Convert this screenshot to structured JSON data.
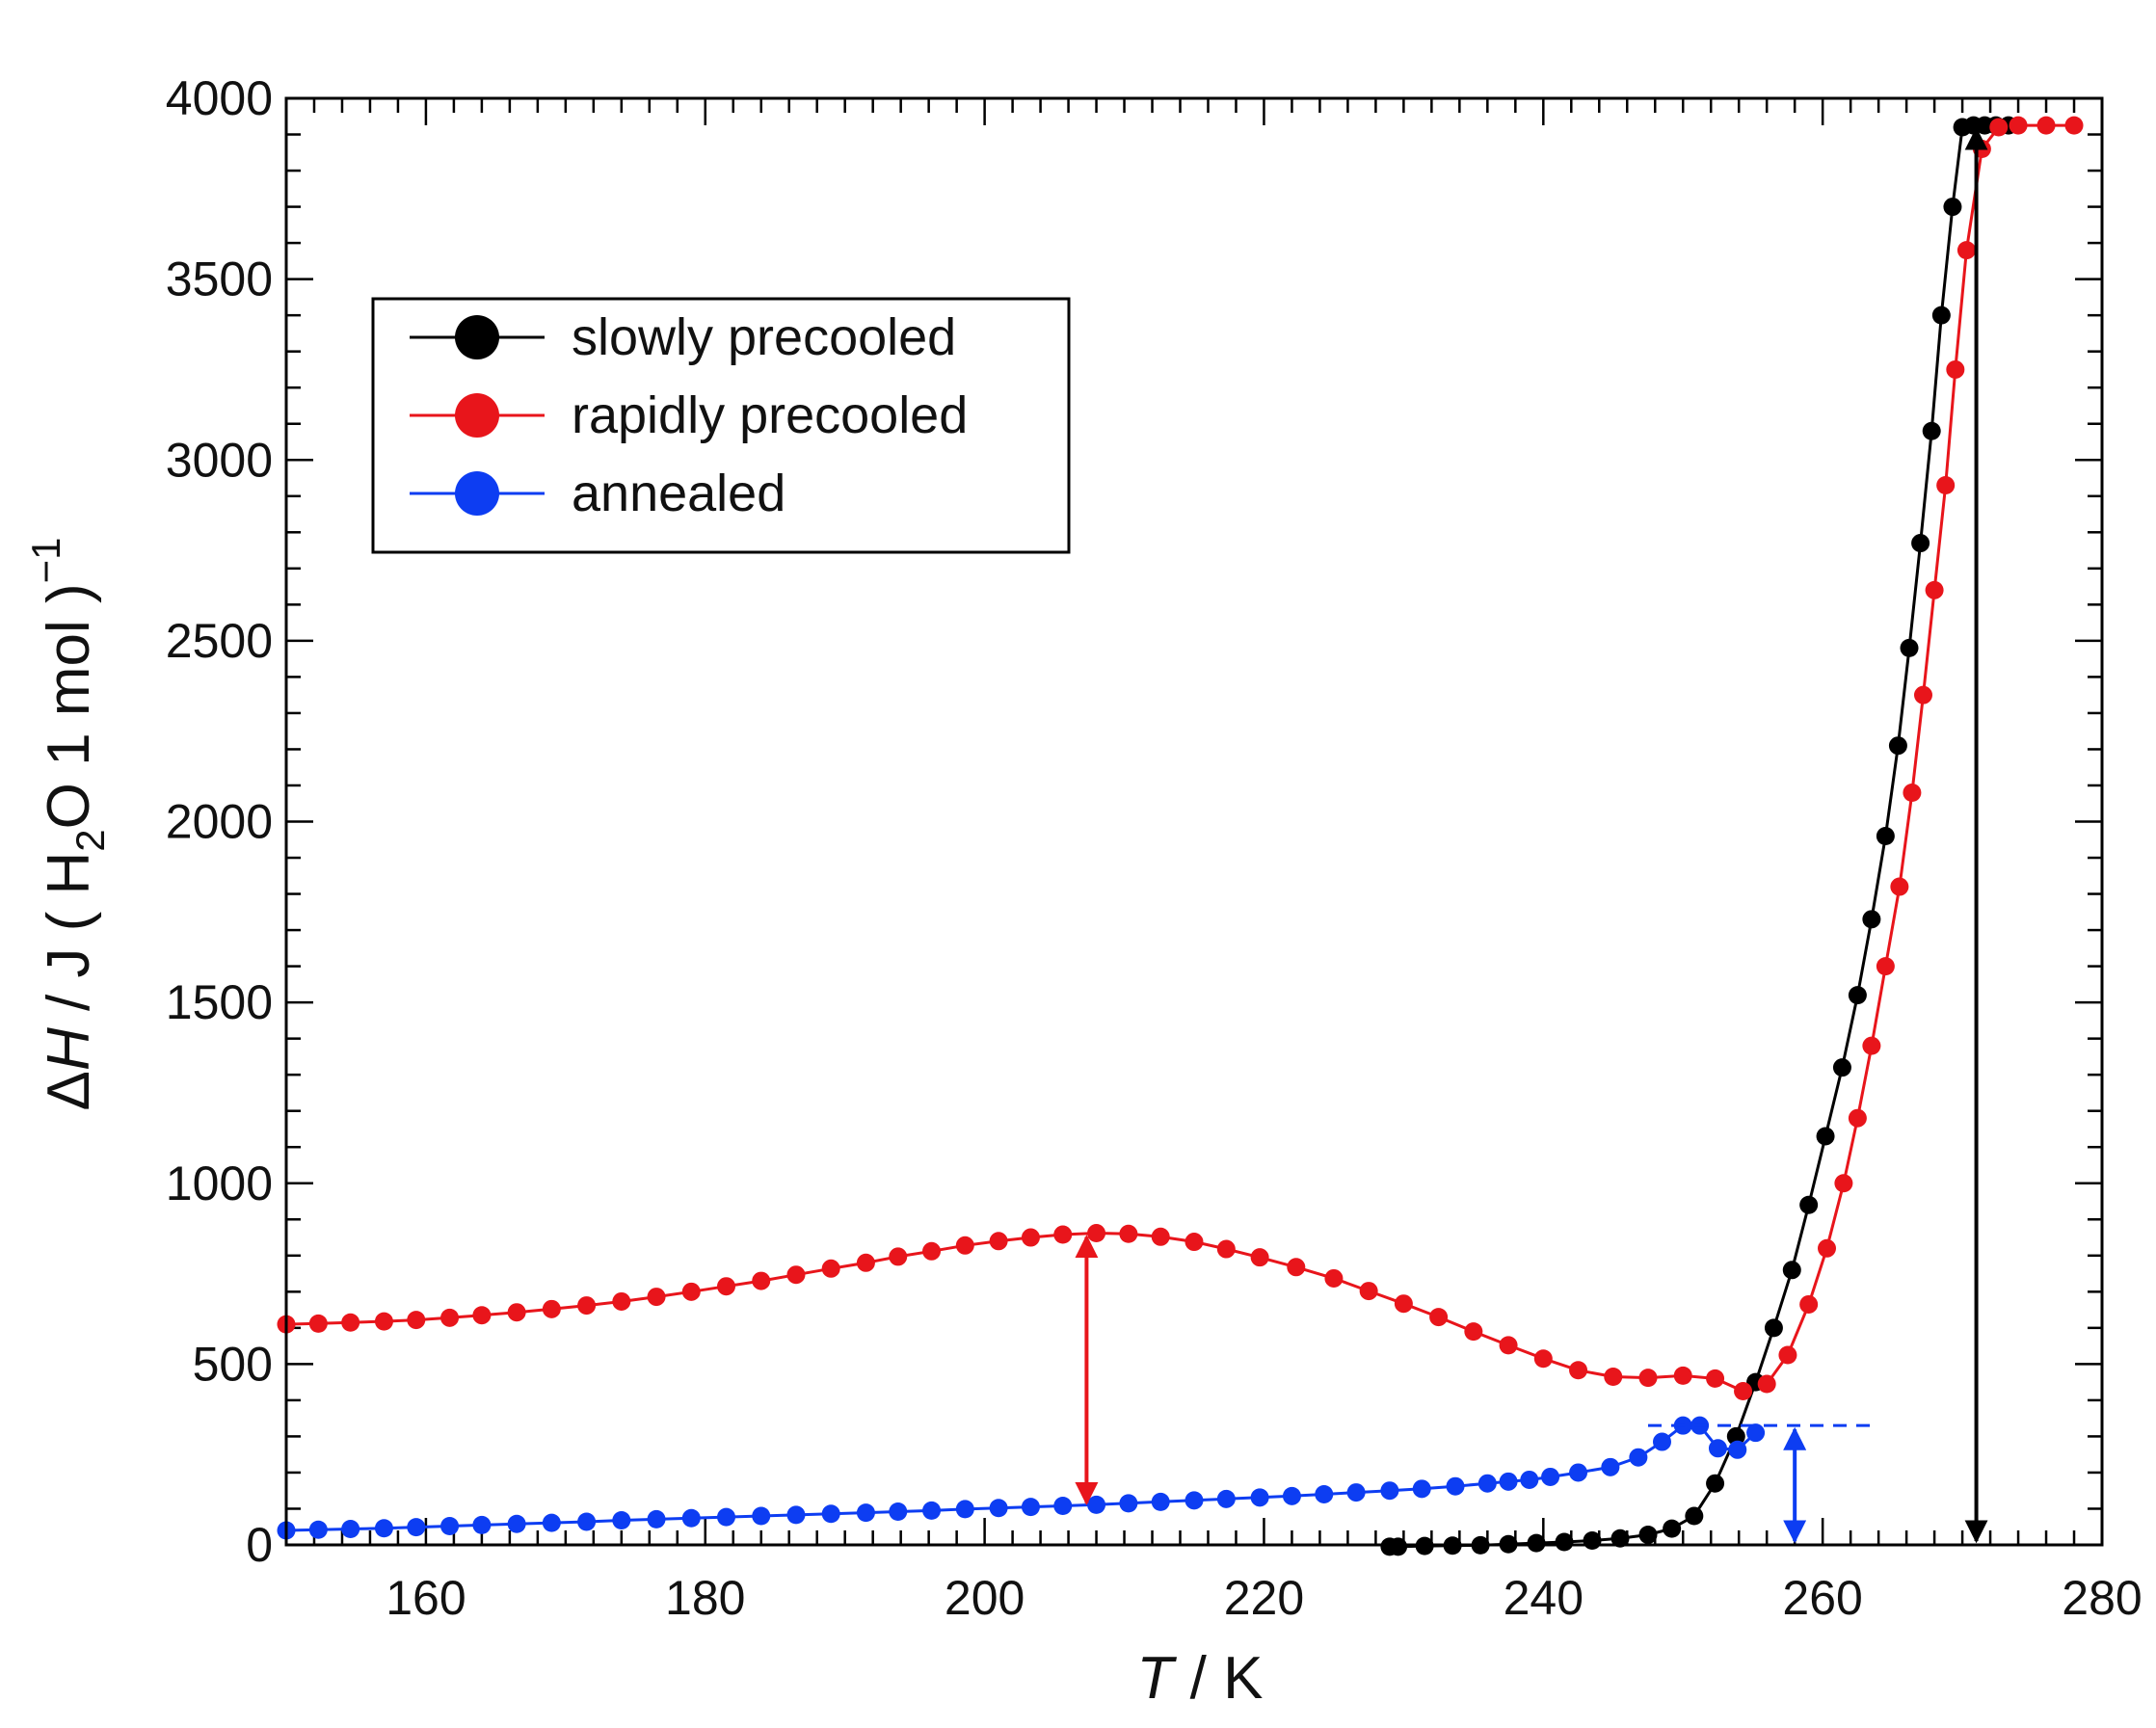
{
  "chart_data": {
    "type": "line",
    "title": "",
    "xlabel": {
      "var": "T",
      "unit": "K"
    },
    "ylabel": {
      "prefix": "Δ",
      "var": "H",
      "mid": " / J ( H",
      "sub": "2",
      "after": "O 1 mol )",
      "sup": "−1"
    },
    "xlim": [
      150,
      280
    ],
    "ylim": [
      0,
      4000
    ],
    "xticks": [
      160,
      180,
      200,
      220,
      240,
      260,
      280
    ],
    "yticks": [
      0,
      500,
      1000,
      1500,
      2000,
      2500,
      3000,
      3500,
      4000
    ],
    "grid": false,
    "legend_position": "top-left",
    "series": [
      {
        "name": "slowly precooled",
        "color": "#000000",
        "x": [
          229,
          229.6,
          231.5,
          233.5,
          235.5,
          237.5,
          239.5,
          241.5,
          243.5,
          245.5,
          247.5,
          249.2,
          250.8,
          252.3,
          253.8,
          255.2,
          256.5,
          257.8,
          259,
          260.2,
          261.4,
          262.5,
          263.5,
          264.5,
          265.4,
          266.2,
          267,
          267.8,
          268.5,
          269.3,
          270,
          270.8,
          271.6,
          272.4,
          273.3
        ],
        "y": [
          -5,
          -5,
          -3,
          -2,
          -1,
          2,
          5,
          8,
          12,
          18,
          28,
          45,
          80,
          170,
          300,
          450,
          600,
          760,
          940,
          1130,
          1320,
          1520,
          1730,
          1960,
          2210,
          2480,
          2770,
          3080,
          3400,
          3700,
          3920,
          3925,
          3925,
          3925,
          3925
        ]
      },
      {
        "name": "rapidly precooled",
        "color": "#e8151b",
        "x": [
          150,
          152.3,
          154.6,
          157,
          159.3,
          161.7,
          164,
          166.5,
          169,
          171.5,
          174,
          176.5,
          179,
          181.5,
          184,
          186.5,
          189,
          191.5,
          193.8,
          196.2,
          198.6,
          201,
          203.3,
          205.6,
          208,
          210.3,
          212.6,
          215,
          217.3,
          219.7,
          222.3,
          225,
          227.5,
          230,
          232.5,
          235,
          237.5,
          240,
          242.5,
          245,
          247.5,
          250,
          252.3,
          254.3,
          256,
          257.5,
          259,
          260.3,
          261.5,
          262.5,
          263.5,
          264.5,
          265.5,
          266.4,
          267.2,
          268,
          268.8,
          269.5,
          270.3,
          271.4,
          272.6,
          274,
          276,
          278
        ],
        "y": [
          610,
          612,
          615,
          618,
          622,
          628,
          635,
          643,
          652,
          662,
          673,
          686,
          700,
          715,
          730,
          747,
          764,
          780,
          797,
          812,
          828,
          840,
          850,
          858,
          862,
          860,
          852,
          838,
          818,
          795,
          768,
          737,
          702,
          667,
          630,
          590,
          552,
          515,
          483,
          465,
          462,
          468,
          460,
          425,
          445,
          525,
          665,
          820,
          1000,
          1180,
          1380,
          1600,
          1820,
          2080,
          2350,
          2640,
          2930,
          3250,
          3580,
          3860,
          3920,
          3925,
          3925,
          3925
        ]
      },
      {
        "name": "annealed",
        "color": "#0d3df2",
        "x": [
          150,
          152.3,
          154.6,
          157,
          159.3,
          161.7,
          164,
          166.5,
          169,
          171.5,
          174,
          176.5,
          179,
          181.5,
          184,
          186.5,
          189,
          191.5,
          193.8,
          196.2,
          198.6,
          201,
          203.3,
          205.6,
          208,
          210.3,
          212.6,
          215,
          217.3,
          219.7,
          222,
          224.3,
          226.6,
          229,
          231.3,
          233.7,
          236,
          237.5,
          239,
          240.5,
          242.5,
          244.8,
          246.8,
          248.5,
          250,
          251.2,
          252.5,
          253.9,
          255.2
        ],
        "y": [
          40,
          42,
          44,
          46,
          49,
          52,
          55,
          58,
          61,
          64,
          68,
          71,
          74,
          77,
          80,
          83,
          86,
          89,
          92,
          95,
          99,
          102,
          105,
          108,
          111,
          115,
          119,
          123,
          127,
          131,
          135,
          140,
          145,
          150,
          155,
          162,
          170,
          175,
          180,
          188,
          200,
          215,
          242,
          285,
          330,
          330,
          267,
          263,
          310
        ]
      }
    ],
    "annotations": [
      {
        "type": "double-arrow",
        "color": "#e8151b",
        "x": 207.3,
        "y_from": 105,
        "y_to": 862
      },
      {
        "type": "double-arrow",
        "color": "#0d3df2",
        "x": 258,
        "y_from": 0,
        "y_to": 330
      },
      {
        "type": "double-arrow",
        "color": "#000000",
        "x": 271,
        "y_from": 0,
        "y_to": 3925
      },
      {
        "type": "dashed-line",
        "color": "#0d3df2",
        "x_from": 247.5,
        "x_to": 263.5,
        "y": 330
      }
    ]
  }
}
